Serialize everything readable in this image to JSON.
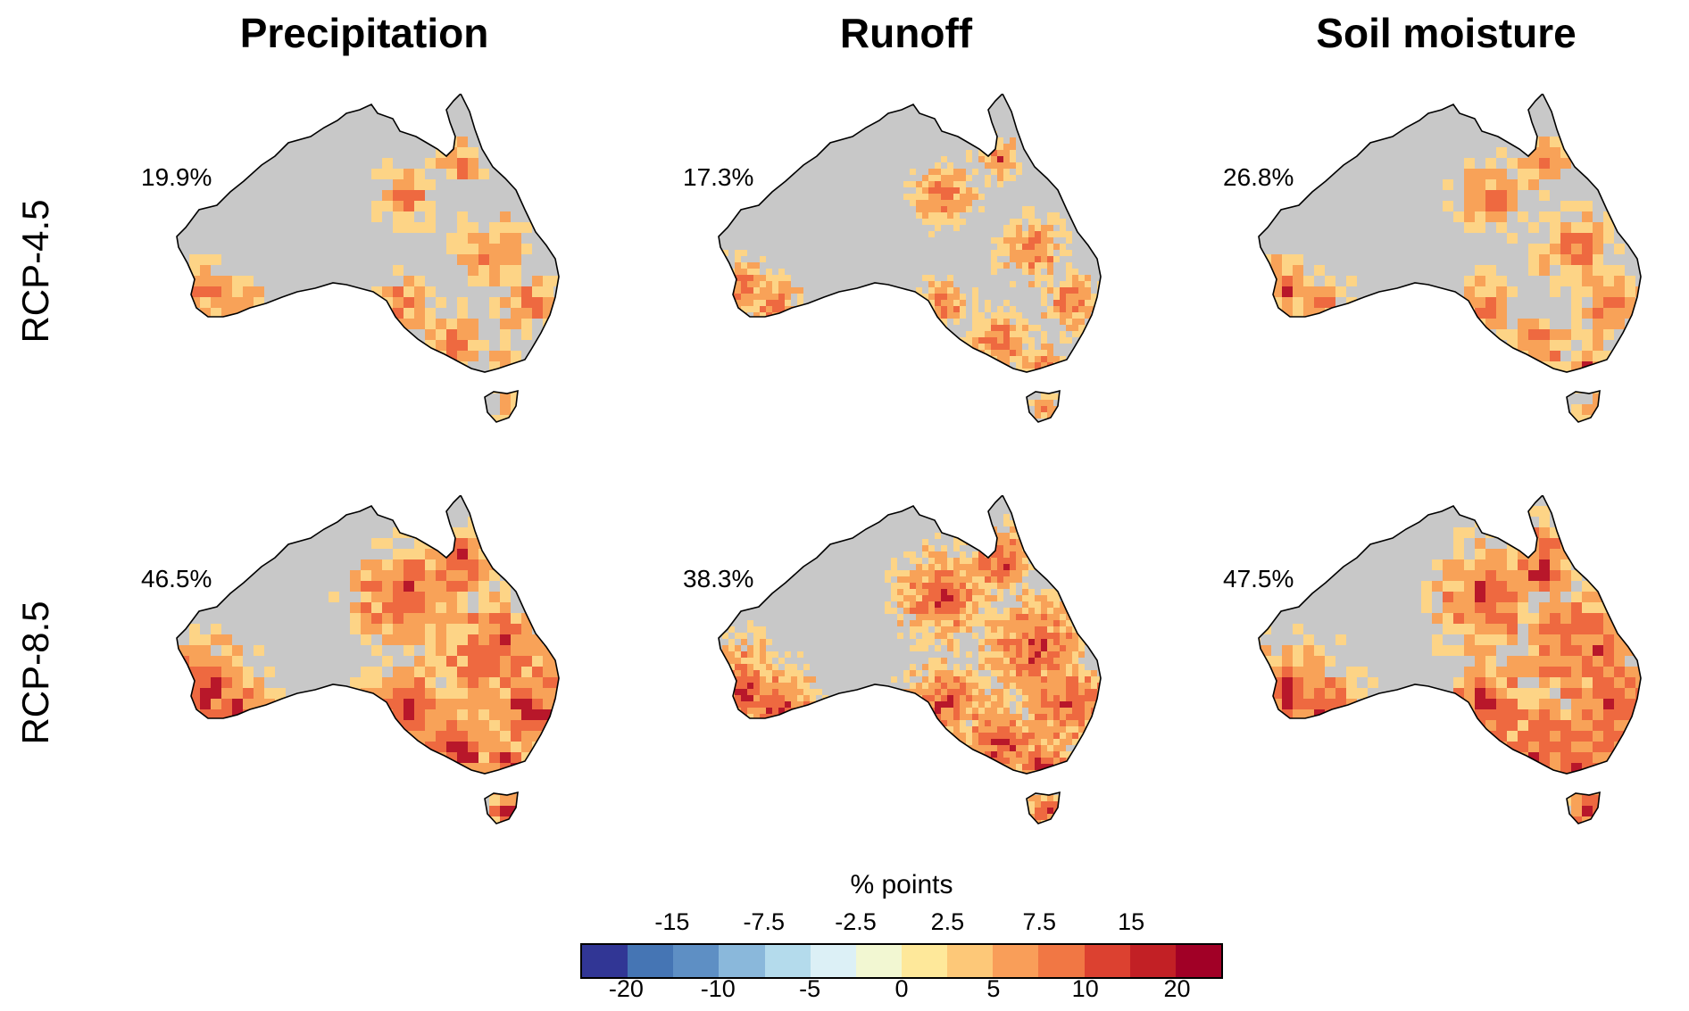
{
  "columns": [
    "Precipitation",
    "Runoff",
    "Soil moisture"
  ],
  "rows": [
    "RCP-4.5",
    "RCP-8.5"
  ],
  "panels": [
    {
      "row": 0,
      "col": 0,
      "percent": "19.9%",
      "intensity": 0.3
    },
    {
      "row": 0,
      "col": 1,
      "percent": "17.3%",
      "intensity": 0.28
    },
    {
      "row": 0,
      "col": 2,
      "percent": "26.8%",
      "intensity": 0.36
    },
    {
      "row": 1,
      "col": 0,
      "percent": "46.5%",
      "intensity": 0.7
    },
    {
      "row": 1,
      "col": 1,
      "percent": "38.3%",
      "intensity": 0.62
    },
    {
      "row": 1,
      "col": 2,
      "percent": "47.5%",
      "intensity": 0.72
    }
  ],
  "legend": {
    "title": "% points",
    "upper_ticks": [
      "-15",
      "-7.5",
      "-2.5",
      "2.5",
      "7.5",
      "15"
    ],
    "lower_ticks": [
      "-20",
      "-10",
      "-5",
      "0",
      "5",
      "10",
      "20"
    ],
    "colors": [
      "#313695",
      "#4575b4",
      "#5e8fc4",
      "#8ab8db",
      "#b4dbec",
      "#dcf0f6",
      "#f2f7d2",
      "#fee89a",
      "#fdc878",
      "#f99e59",
      "#f17744",
      "#dc4130",
      "#c22025",
      "#a10026"
    ]
  },
  "map_colors": {
    "land": "#c8c8c8",
    "light": "#fdd486",
    "mid": "#f8a258",
    "strong": "#ee6940",
    "max": "#b8172a"
  }
}
